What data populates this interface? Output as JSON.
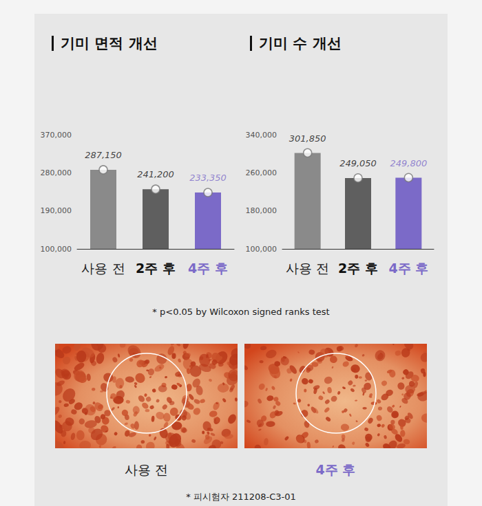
{
  "chart_data": [
    {
      "type": "bar",
      "title": "기미 면적 개선",
      "categories": [
        "사용 전",
        "2주 후",
        "4주 후"
      ],
      "values": [
        287150,
        241200,
        233350
      ],
      "value_labels": [
        "287,150",
        "241,200",
        "233,350"
      ],
      "colors": [
        "#8a8a8a",
        "#5f5f5f",
        "#7b6ac8"
      ],
      "ylim": [
        100000,
        370000
      ],
      "yticks": [
        {
          "value": 100000,
          "label": "100,000"
        },
        {
          "value": 190000,
          "label": "190,000"
        },
        {
          "value": 280000,
          "label": "280,000"
        },
        {
          "value": 370000,
          "label": "370,000"
        }
      ],
      "data_labels": true,
      "grid": false
    },
    {
      "type": "bar",
      "title": "기미 수 개선",
      "categories": [
        "사용 전",
        "2주 후",
        "4주 후"
      ],
      "values": [
        301850,
        249050,
        249800
      ],
      "value_labels": [
        "301,850",
        "249,050",
        "249,800"
      ],
      "colors": [
        "#8a8a8a",
        "#5f5f5f",
        "#7b6ac8"
      ],
      "ylim": [
        100000,
        340000
      ],
      "yticks": [
        {
          "value": 100000,
          "label": "100,000"
        },
        {
          "value": 180000,
          "label": "180,000"
        },
        {
          "value": 260000,
          "label": "260,000"
        },
        {
          "value": 340000,
          "label": "340,000"
        }
      ],
      "data_labels": true,
      "grid": false
    }
  ],
  "footnote": "* p<0.05 by Wilcoxon signed ranks test",
  "images": [
    {
      "caption": "사용 전"
    },
    {
      "caption": "4주 후"
    }
  ],
  "subject_note": "* 피시험자 211208-C3-01"
}
